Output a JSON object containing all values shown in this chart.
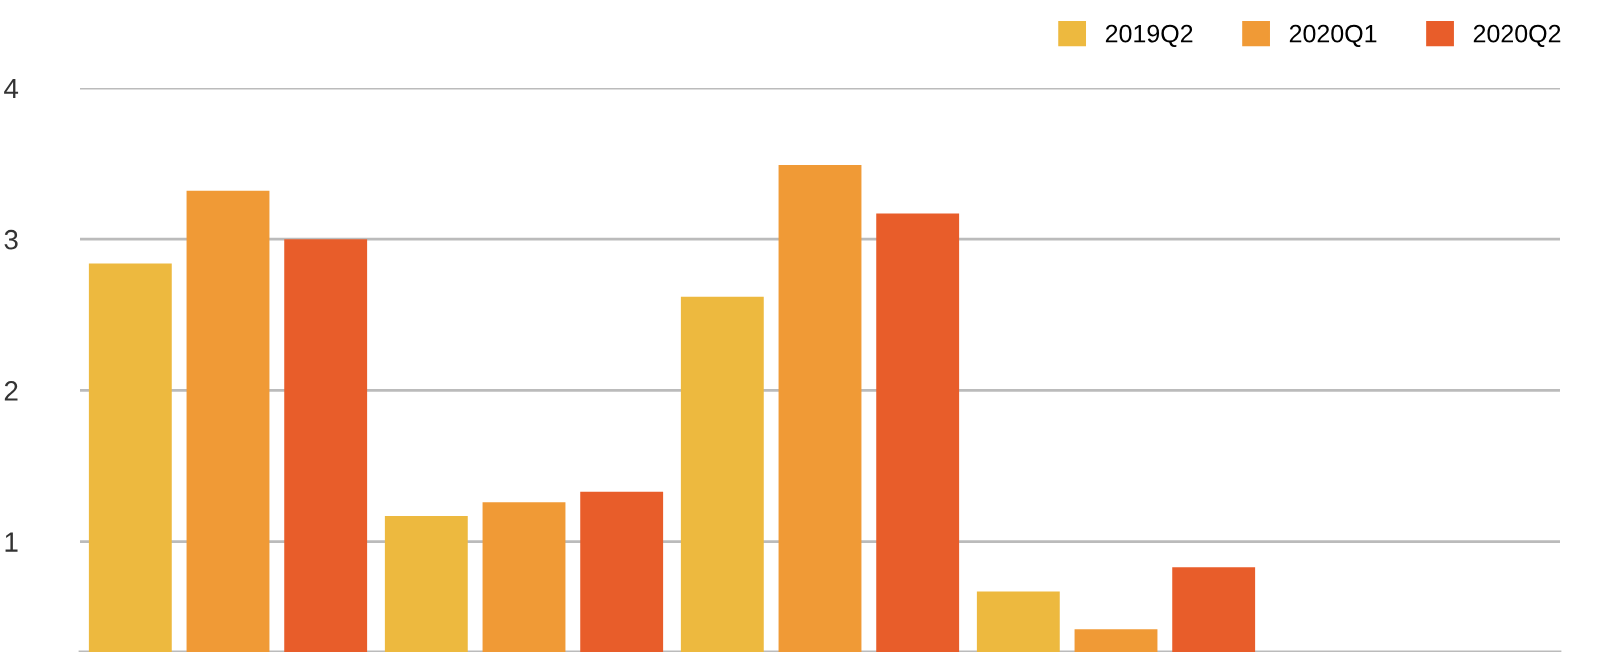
{
  "chart_data": {
    "type": "bar",
    "categories": [
      null,
      null,
      null,
      null
    ],
    "series": [
      {
        "name": "2019Q2",
        "color": "#edb93f",
        "values": [
          2.84,
          1.17,
          2.62,
          0.67
        ]
      },
      {
        "name": "2020Q1",
        "color": "#f09a36",
        "values": [
          3.32,
          1.26,
          3.49,
          0.42
        ]
      },
      {
        "name": "2020Q2",
        "color": "#e85d2a",
        "values": [
          3.0,
          1.33,
          3.17,
          0.83
        ]
      }
    ],
    "ylim": [
      0.27,
      4
    ],
    "yticks": [
      1,
      2,
      3,
      4
    ],
    "grid": "y",
    "legend": "top right"
  }
}
